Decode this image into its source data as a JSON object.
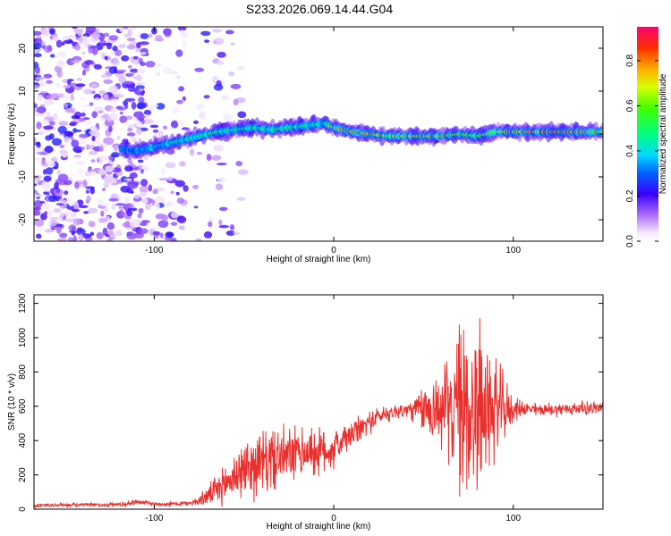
{
  "title": "S233.2026.069.14.44.G04",
  "chart_data": [
    {
      "type": "heatmap",
      "xlabel": "Height of straight line (km)",
      "ylabel": "Frequency (Hz)",
      "xlim": [
        -167,
        150
      ],
      "ylim": [
        -25,
        25
      ],
      "x_ticks": [
        -100,
        0,
        100
      ],
      "y_ticks": [
        -20,
        -10,
        0,
        10,
        20
      ],
      "ridge": {
        "x": [
          -117,
          -112,
          -105,
          -95,
          -85,
          -75,
          -65,
          -55,
          -45,
          -35,
          -25,
          -15,
          -5,
          0,
          10,
          20,
          30,
          40,
          50,
          60,
          70,
          80,
          90,
          100,
          110,
          120,
          130,
          140,
          150
        ],
        "freq": [
          -3.5,
          -4.0,
          -3.5,
          -2.5,
          -1.5,
          -0.5,
          0.5,
          1.0,
          1.5,
          1.0,
          1.5,
          2.0,
          2.5,
          1.5,
          0.5,
          0.0,
          -0.5,
          -0.5,
          -0.5,
          -0.5,
          0.0,
          -0.5,
          0.5,
          0.5,
          0.5,
          0.5,
          0.5,
          0.5,
          0.5
        ],
        "amplitude": [
          0.35,
          0.3,
          0.4,
          0.45,
          0.5,
          0.55,
          0.6,
          0.55,
          0.6,
          0.55,
          0.6,
          0.55,
          0.5,
          0.9,
          0.95,
          0.9,
          0.8,
          0.85,
          0.9,
          0.85,
          0.8,
          0.7,
          0.85,
          0.95,
          0.95,
          0.95,
          0.9,
          0.9,
          0.8
        ]
      },
      "noise_region": [
        -167,
        -80
      ],
      "colorbar": {
        "label": "Normalized spectral amplitude",
        "range": [
          0.0,
          0.95
        ],
        "ticks": [
          0.0,
          0.2,
          0.4,
          0.6,
          0.8
        ],
        "tick_labels": [
          "0.0",
          "0.2",
          "0.4",
          "0.6",
          "0.8"
        ]
      }
    },
    {
      "type": "line",
      "xlabel": "Height of straight line (km)",
      "ylabel": "SNR (10 * v/v)",
      "xlim": [
        -167,
        150
      ],
      "ylim": [
        0,
        1250
      ],
      "x_ticks": [
        -100,
        0,
        100
      ],
      "y_ticks": [
        0,
        200,
        400,
        600,
        800,
        1000,
        1200
      ],
      "series": [
        {
          "name": "SNR",
          "color": "#e8312e",
          "x": [
            -167,
            -150,
            -130,
            -115,
            -110,
            -105,
            -100,
            -90,
            -80,
            -75,
            -70,
            -65,
            -60,
            -55,
            -50,
            -45,
            -40,
            -35,
            -30,
            -25,
            -20,
            -15,
            -10,
            -5,
            0,
            5,
            10,
            15,
            20,
            25,
            30,
            35,
            40,
            45,
            50,
            55,
            60,
            65,
            70,
            75,
            80,
            85,
            90,
            95,
            100,
            105,
            110,
            120,
            130,
            140,
            150
          ],
          "y": [
            20,
            25,
            25,
            30,
            45,
            40,
            30,
            30,
            35,
            50,
            80,
            110,
            150,
            200,
            230,
            260,
            270,
            290,
            300,
            310,
            320,
            340,
            330,
            340,
            350,
            400,
            430,
            470,
            510,
            540,
            560,
            570,
            575,
            580,
            580,
            585,
            580,
            590,
            580,
            600,
            590,
            580,
            590,
            580,
            580,
            590,
            580,
            580,
            585,
            590,
            590
          ],
          "noise": [
            15,
            10,
            12,
            15,
            18,
            15,
            12,
            14,
            15,
            30,
            60,
            90,
            120,
            150,
            170,
            190,
            200,
            190,
            180,
            170,
            160,
            150,
            150,
            140,
            120,
            100,
            90,
            80,
            70,
            60,
            50,
            50,
            60,
            70,
            150,
            200,
            250,
            300,
            500,
            600,
            550,
            400,
            300,
            200,
            70,
            50,
            40,
            40,
            40,
            40,
            40
          ]
        }
      ]
    }
  ]
}
